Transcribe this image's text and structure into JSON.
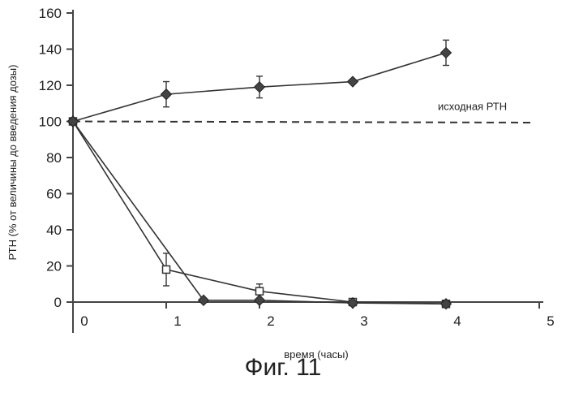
{
  "figure_caption": "Фиг. 11",
  "chart_data": {
    "type": "line",
    "xlabel": "время (часы)",
    "ylabel": "РТН (% от величины до введения дозы)",
    "xlim": [
      0,
      5
    ],
    "ylim": [
      0,
      160
    ],
    "xticks": [
      0,
      1,
      2,
      3,
      4,
      5
    ],
    "yticks": [
      0,
      20,
      40,
      60,
      80,
      100,
      120,
      140,
      160
    ],
    "grid": false,
    "baseline": {
      "label": "исходная РТН",
      "y": 100,
      "style": "dashed"
    },
    "series": [
      {
        "marker": "diamond",
        "x": [
          0,
          1,
          2,
          3,
          4
        ],
        "y": [
          100,
          115,
          119,
          122,
          138
        ],
        "err": [
          0,
          7,
          6,
          0,
          7
        ]
      },
      {
        "marker": "square",
        "x": [
          0,
          1,
          2,
          3,
          4
        ],
        "y": [
          100,
          18,
          6,
          0,
          -1
        ],
        "err": [
          0,
          9,
          4,
          0,
          0
        ]
      },
      {
        "marker": "diamond",
        "x": [
          0,
          1.4,
          2,
          3,
          4
        ],
        "y": [
          100,
          1,
          1,
          -0.5,
          -1
        ],
        "err": [
          0,
          0,
          0,
          0,
          0
        ]
      }
    ]
  }
}
